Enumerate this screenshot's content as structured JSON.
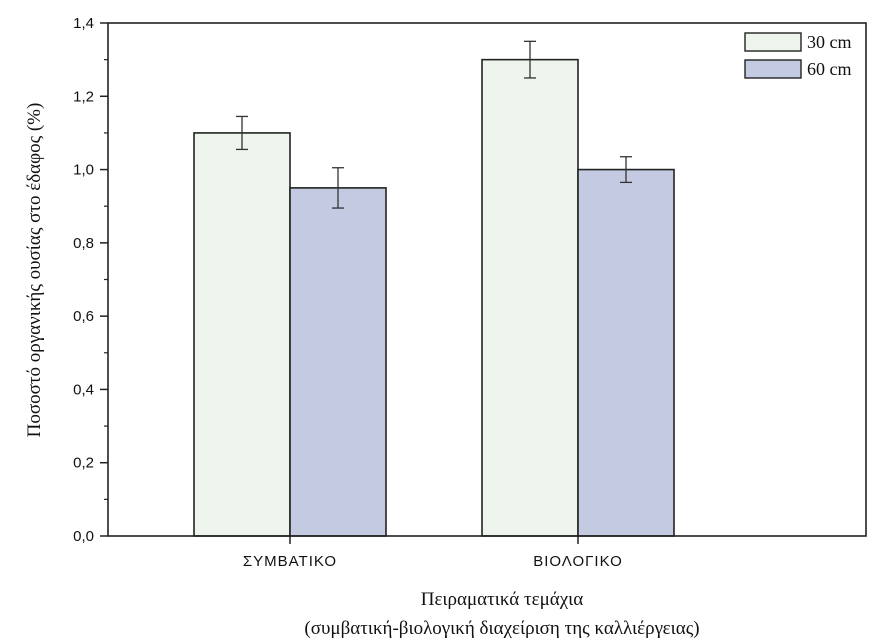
{
  "chart_data": {
    "type": "bar",
    "categories": [
      "ΣΥΜΒΑΤΙΚΟ",
      "ΒΙΟΛΟΓΙΚΟ"
    ],
    "series": [
      {
        "name": "30 cm",
        "values": [
          1.1,
          1.3
        ],
        "errors": [
          0.045,
          0.05
        ],
        "color": "#eef5ec"
      },
      {
        "name": "60 cm",
        "values": [
          0.95,
          1.0
        ],
        "errors": [
          0.055,
          0.035
        ],
        "color": "#c5cae3"
      }
    ],
    "ylabel": "Ποσοστό οργανικής ουσίας στο έδαφος (%)",
    "xlabel_line1": "Πειραματικά τεμάχια",
    "xlabel_line2": "(συμβατική-βιολογική διαχείριση της καλλιέργειας)",
    "ylim": [
      0,
      1.4
    ],
    "yticks": [
      "0,0",
      "0,2",
      "0,4",
      "0,6",
      "0,8",
      "1,0",
      "1,2",
      "1,4"
    ],
    "legend_position": "top-right",
    "grid": false
  }
}
